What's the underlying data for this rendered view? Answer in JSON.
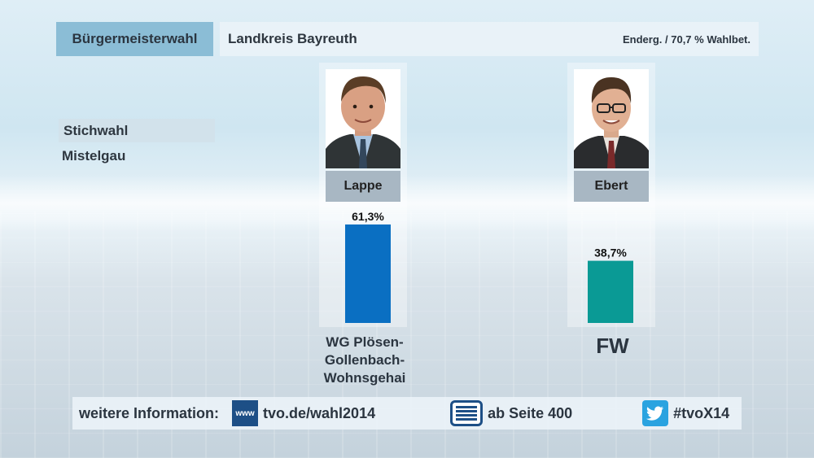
{
  "header": {
    "title": "Bürgermeisterwahl",
    "region": "Landkreis Bayreuth",
    "status": "Enderg. / 70,7 % Wahlbet."
  },
  "side": {
    "round": "Stichwahl",
    "place": "Mistelgau"
  },
  "candidates": [
    {
      "name": "Lappe",
      "party": "WG Plösen-\nGollenbach-\nWohnsgehai"
    },
    {
      "name": "Ebert",
      "party": "FW"
    }
  ],
  "chart_data": {
    "type": "bar",
    "categories": [
      "Lappe",
      "Ebert"
    ],
    "values": [
      61.3,
      38.7
    ],
    "value_labels": [
      "61,3%",
      "38,7%"
    ],
    "colors": [
      "#0a6fc2",
      "#0a9a95"
    ],
    "ylim": [
      0,
      100
    ]
  },
  "footer": {
    "label": "weitere Information:",
    "www_icon_text": "www",
    "url": "tvo.de/wahl2014",
    "teletext": "ab Seite 400",
    "hashtag": "#tvoX14"
  }
}
